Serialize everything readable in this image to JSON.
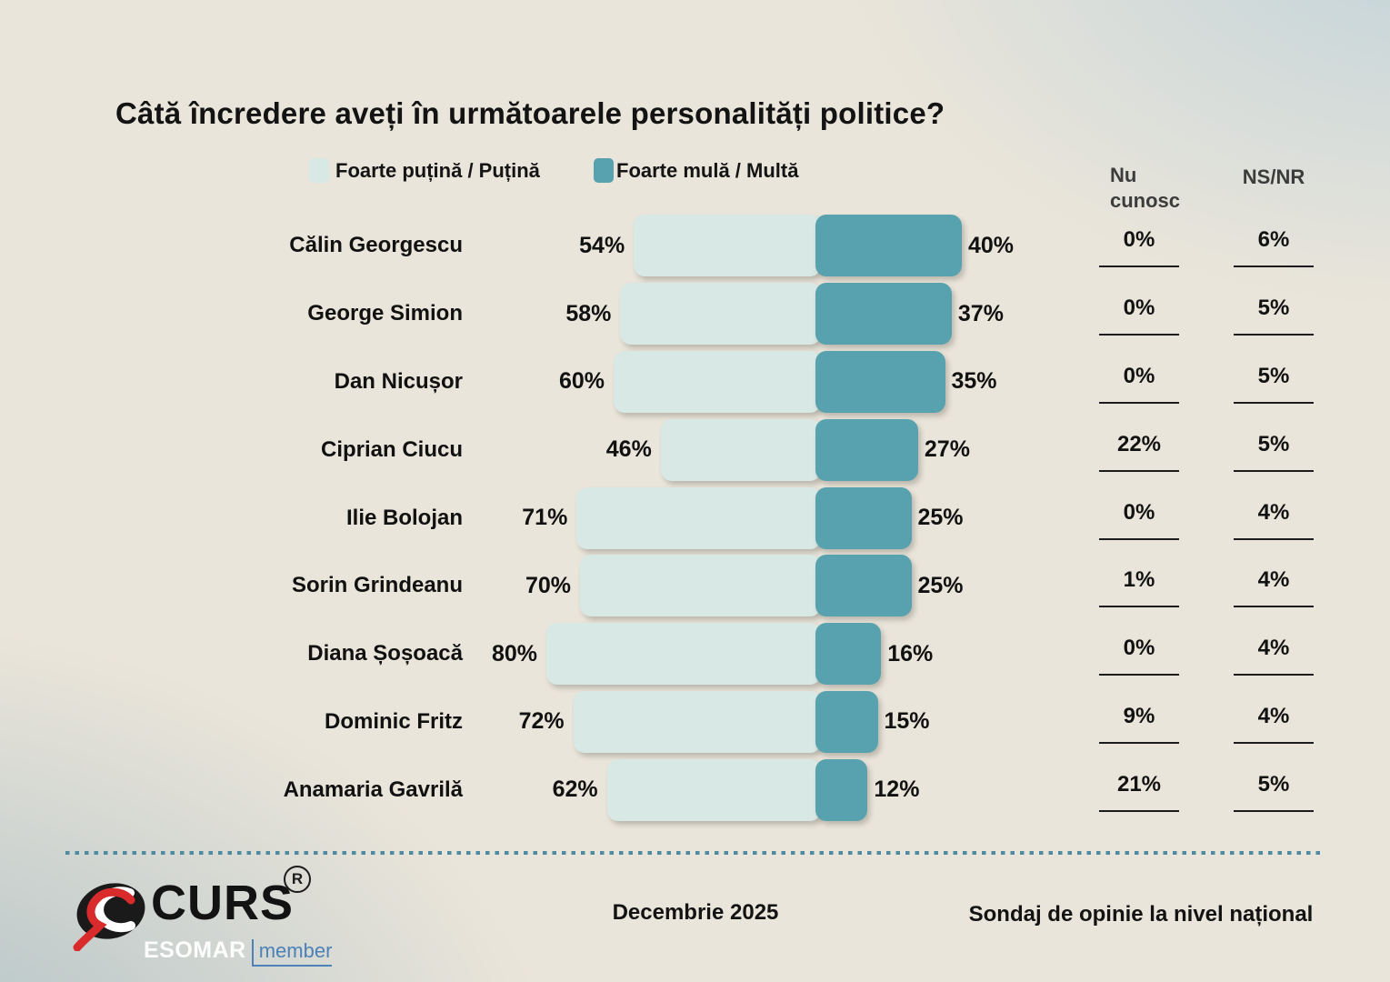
{
  "title": "Câtă încredere aveți în următoarele personalități politice?",
  "legend": {
    "putina": "Foarte puțină / Puțină",
    "multa": "Foarte mulă / Multă"
  },
  "columns": {
    "nu_cunosc": "Nu cunosc",
    "nsnr": "NS/NR"
  },
  "rows": [
    {
      "name": "Călin Georgescu",
      "putina_label": "54%",
      "multa_label": "40%",
      "nu_label": "0%",
      "nsnr_label": "6%"
    },
    {
      "name": "George Simion",
      "putina_label": "58%",
      "multa_label": "37%",
      "nu_label": "0%",
      "nsnr_label": "5%"
    },
    {
      "name": "Dan Nicușor",
      "putina_label": "60%",
      "multa_label": "35%",
      "nu_label": "0%",
      "nsnr_label": "5%"
    },
    {
      "name": "Ciprian Ciucu",
      "putina_label": "46%",
      "multa_label": "27%",
      "nu_label": "22%",
      "nsnr_label": "5%"
    },
    {
      "name": "Ilie Bolojan",
      "putina_label": "71%",
      "multa_label": "25%",
      "nu_label": "0%",
      "nsnr_label": "4%"
    },
    {
      "name": "Sorin Grindeanu",
      "putina_label": "70%",
      "multa_label": "25%",
      "nu_label": "1%",
      "nsnr_label": "4%"
    },
    {
      "name": "Diana Șoșoacă",
      "putina_label": "80%",
      "multa_label": "16%",
      "nu_label": "0%",
      "nsnr_label": "4%"
    },
    {
      "name": "Dominic Fritz",
      "putina_label": "72%",
      "multa_label": "15%",
      "nu_label": "9%",
      "nsnr_label": "4%"
    },
    {
      "name": "Anamaria Gavrilă",
      "putina_label": "62%",
      "multa_label": "12%",
      "nu_label": "21%",
      "nsnr_label": "5%"
    }
  ],
  "footer": {
    "brand": "CURS",
    "reg": "R",
    "esomar": "ESOMAR",
    "member": "member",
    "date": "Decembrie 2025",
    "note": "Sondaj de opinie la nivel național"
  },
  "colors": {
    "light_bar": "#d8e8e4",
    "teal_bar": "#57a2ae",
    "dotted_line": "#4e8ba0",
    "background_cream": "#eae5da",
    "background_blue": "#bfd2d9",
    "logo_red": "#d92b2b",
    "member_blue": "#4d82b8",
    "header_gray": "#3c3c3c"
  },
  "chart_data": {
    "type": "bar",
    "orientation": "horizontal-diverging",
    "title": "Câtă încredere aveți în următoarele personalități politice?",
    "unit": "%",
    "legend_position": "top",
    "grid": false,
    "categories": [
      "Călin Georgescu",
      "George Simion",
      "Dan Nicușor",
      "Ciprian Ciucu",
      "Ilie Bolojan",
      "Sorin Grindeanu",
      "Diana Șoșoacă",
      "Dominic Fritz",
      "Anamaria Gavrilă"
    ],
    "series": [
      {
        "name": "Foarte puțină / Puțină",
        "color": "#d8e8e4",
        "values": [
          54,
          58,
          60,
          46,
          71,
          70,
          80,
          72,
          62
        ]
      },
      {
        "name": "Foarte mulă / Multă",
        "color": "#57a2ae",
        "values": [
          40,
          37,
          35,
          27,
          25,
          25,
          16,
          15,
          12
        ]
      },
      {
        "name": "Nu cunosc",
        "values": [
          0,
          0,
          0,
          22,
          0,
          1,
          0,
          9,
          21
        ]
      },
      {
        "name": "NS/NR",
        "values": [
          6,
          5,
          5,
          5,
          4,
          4,
          4,
          4,
          5
        ]
      }
    ],
    "annotations": {
      "date": "Decembrie 2025",
      "scope": "Sondaj de opinie la nivel național"
    }
  }
}
